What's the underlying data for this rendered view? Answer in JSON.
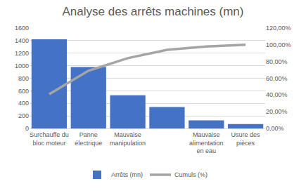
{
  "chart_data": {
    "type": "bar",
    "title": "Analyse des arrêts machines (mn)",
    "categories": [
      "Surchauffe du bloc moteur",
      "Panne électrique",
      "Mauvaise manipulation",
      null,
      "Mauvaise alimentation en eau",
      "Usure des pièces"
    ],
    "series": [
      {
        "name": "Arrêts (mn)",
        "type": "bar",
        "color": "#4472c4",
        "axis": "y",
        "values": [
          1420,
          980,
          530,
          340,
          130,
          70
        ]
      },
      {
        "name": "Cumuls (%)",
        "type": "line",
        "color": "#a5a5a5",
        "axis": "y2",
        "line_style": "solid",
        "values": [
          41,
          69,
          84,
          94,
          98,
          100
        ]
      }
    ],
    "ylim": [
      0,
      1600
    ],
    "yticks": [
      0,
      200,
      400,
      600,
      800,
      1000,
      1200,
      1400,
      1600
    ],
    "y2lim": [
      0,
      120
    ],
    "y2ticks": [
      {
        "value": 0,
        "label": "0,00%"
      },
      {
        "value": 20,
        "label": "20,00%"
      },
      {
        "value": 40,
        "label": "40,00%"
      },
      {
        "value": 60,
        "label": "60,00%"
      },
      {
        "value": 80,
        "label": "80,00%"
      },
      {
        "value": 100,
        "label": "100,00%"
      },
      {
        "value": 120,
        "label": "120,00%"
      }
    ],
    "grid": true,
    "legend": "bottom"
  }
}
